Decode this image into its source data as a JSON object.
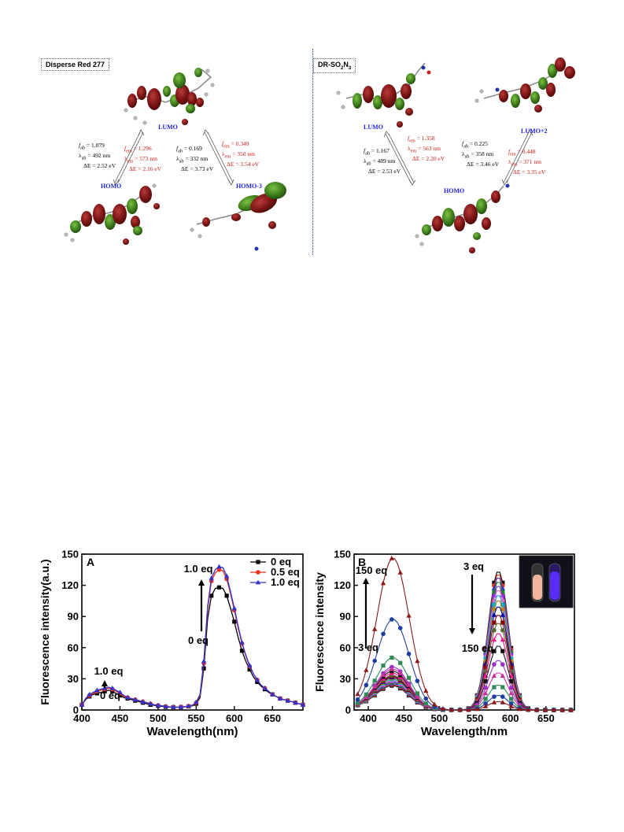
{
  "figure_top": {
    "left_panel": {
      "tag": "Disperse Red 277",
      "labels": {
        "lumo": "LUMO",
        "homo": "HOMO",
        "homo3": "HOMO-3"
      },
      "t1_black": {
        "f": "f",
        "f_sub": "ab",
        "f_val": " = 1.079",
        "lam": "λ",
        "lam_sub": "ab",
        "lam_val": " = 492 nm",
        "de": "ΔE = 2.52 eV"
      },
      "t1_red": {
        "f": "f",
        "f_sub": "em",
        "f_val": " = 1.296",
        "lam": "λ",
        "lam_sub": "em",
        "lam_val": " = 573 nm",
        "de": "ΔE = 2.16 eV"
      },
      "t2_black": {
        "f": "f",
        "f_sub": "ab",
        "f_val": " = 0.169",
        "lam": "λ",
        "lam_sub": "ab",
        "lam_val": " = 332 nm",
        "de": "ΔE = 3.73 eV"
      },
      "t2_red": {
        "f": "f",
        "f_sub": "em",
        "f_val": " = 0.349",
        "lam": "λ",
        "lam_sub": "em",
        "lam_val": " = 350 nm",
        "de": "ΔE = 3.54 eV"
      }
    },
    "right_panel": {
      "tag_main": "DR-SO",
      "tag_sub1": "2",
      "tag_mid": "N",
      "tag_sub2": "3",
      "labels": {
        "lumo": "LUMO",
        "homo": "HOMO",
        "lumo2": "LUMO+2"
      },
      "t1_black": {
        "f": "f",
        "f_sub": "ab",
        "f_val": " = 1.167",
        "lam": "λ",
        "lam_sub": "ab",
        "lam_val": " = 489 nm",
        "de": "ΔE = 2.53 eV"
      },
      "t1_red": {
        "f": "f",
        "f_sub": "em",
        "f_val": " = 1.358",
        "lam": "λ",
        "lam_sub": "em",
        "lam_val": " = 563 nm",
        "de": "ΔE = 2.20 eV"
      },
      "t2_black": {
        "f": "f",
        "f_sub": "ab",
        "f_val": " = 0.225",
        "lam": "λ",
        "lam_sub": "ab",
        "lam_val": " = 358 nm",
        "de": "ΔE = 3.46 eV"
      },
      "t2_red": {
        "f": "f",
        "f_sub": "em",
        "f_val": " = 0.448",
        "lam": "λ",
        "lam_sub": "em",
        "lam_val": " = 371 nm",
        "de": "ΔE = 3.35 eV"
      }
    },
    "colors": {
      "lobe_red": "#7a1414",
      "lobe_green": "#3e7d1c",
      "label_blue": "#2222dd",
      "text_red": "#cc1a1a"
    }
  },
  "chart_data": [
    {
      "type": "line",
      "panel_label": "A",
      "xlabel": "Wavelength(nm)",
      "ylabel": "Fluorescence intensity(a.u.)",
      "xlim": [
        400,
        690
      ],
      "ylim": [
        0,
        150
      ],
      "xticks": [
        400,
        450,
        500,
        550,
        600,
        650
      ],
      "yticks": [
        0,
        30,
        60,
        90,
        120,
        150
      ],
      "legend_position": "top-right",
      "annotations": {
        "arrow_top": "1.0 eq",
        "arrow_bottom": "0 eq",
        "small_top": "1.0 eq",
        "small_bottom": "0 eq"
      },
      "x": [
        400,
        405,
        410,
        415,
        420,
        425,
        430,
        435,
        440,
        445,
        450,
        455,
        460,
        465,
        470,
        475,
        480,
        485,
        490,
        495,
        500,
        505,
        510,
        515,
        520,
        525,
        530,
        535,
        540,
        545,
        550,
        555,
        560,
        565,
        570,
        575,
        580,
        585,
        590,
        595,
        600,
        605,
        610,
        615,
        620,
        625,
        630,
        635,
        640,
        645,
        650,
        655,
        660,
        665,
        670,
        675,
        680,
        685,
        690
      ],
      "series": [
        {
          "name": "0 eq",
          "color": "#000000",
          "marker": "square",
          "values": [
            5,
            10,
            13,
            15,
            16,
            17,
            18,
            19,
            18,
            16,
            14,
            12,
            11,
            10,
            9,
            8,
            7,
            6,
            5,
            4.5,
            4,
            3.5,
            3,
            2.8,
            2.7,
            2.6,
            2.8,
            3,
            3.5,
            4,
            6,
            12,
            40,
            88,
            110,
            117,
            118,
            117,
            110,
            98,
            85,
            70,
            57,
            47,
            39,
            32,
            27,
            23,
            20,
            17,
            15,
            13,
            11,
            10,
            9,
            8,
            7,
            6,
            5
          ]
        },
        {
          "name": "0.5 eq",
          "color": "#e8321e",
          "marker": "circle",
          "values": [
            5,
            11,
            14,
            16,
            18,
            19,
            20,
            21,
            20,
            18,
            16,
            13,
            12,
            11,
            10,
            9,
            8,
            7,
            6,
            5,
            4.5,
            4,
            3.5,
            3,
            2.9,
            2.8,
            3,
            3.2,
            3.7,
            4.5,
            7,
            14,
            45,
            97,
            124,
            132,
            135,
            134,
            126,
            112,
            96,
            79,
            64,
            52,
            42,
            35,
            29,
            24,
            21,
            18,
            15,
            13,
            11,
            10,
            9,
            8,
            7,
            6,
            5
          ]
        },
        {
          "name": "1.0 eq",
          "color": "#3333cc",
          "marker": "triangle",
          "values": [
            5,
            11,
            15,
            17,
            19,
            20,
            21,
            22,
            21,
            19,
            17,
            14,
            12,
            11,
            10,
            9,
            8,
            7,
            6,
            5,
            4.5,
            4,
            3.5,
            3,
            2.9,
            2.8,
            3,
            3.3,
            3.8,
            4.6,
            7.5,
            15,
            47,
            100,
            127,
            135,
            138,
            137,
            129,
            114,
            98,
            81,
            65,
            53,
            43,
            35,
            29,
            24,
            21,
            18,
            15,
            13,
            11,
            10,
            9,
            8,
            7,
            6,
            5
          ]
        }
      ]
    },
    {
      "type": "line",
      "panel_label": "B",
      "xlabel": "Wavelength/nm",
      "ylabel": "Fluorescence intensity",
      "xlim": [
        380,
        690
      ],
      "ylim": [
        0,
        150
      ],
      "xticks": [
        400,
        450,
        500,
        550,
        600,
        650
      ],
      "yticks": [
        0,
        30,
        60,
        90,
        120,
        150
      ],
      "annotations": {
        "left_top": "150 eq",
        "left_bottom": "3 eq",
        "right_top": "3 eq",
        "right_bottom": "150 eq"
      },
      "series": [
        {
          "name": "s1",
          "color": "#000000",
          "peak1": 22,
          "peak2": 134
        },
        {
          "name": "s2",
          "color": "#e8321e",
          "peak1": 23,
          "peak2": 131
        },
        {
          "name": "s3",
          "color": "#3333cc",
          "peak1": 24,
          "peak2": 128
        },
        {
          "name": "s4",
          "color": "#1a8a1a",
          "peak1": 25,
          "peak2": 124
        },
        {
          "name": "s5",
          "color": "#8a2be2",
          "peak1": 26,
          "peak2": 120
        },
        {
          "name": "s6",
          "color": "#ff66cc",
          "peak1": 27,
          "peak2": 116
        },
        {
          "name": "s7",
          "color": "#00aacc",
          "peak1": 28,
          "peak2": 111
        },
        {
          "name": "s8",
          "color": "#b8860b",
          "peak1": 29,
          "peak2": 106
        },
        {
          "name": "s9",
          "color": "#0000aa",
          "peak1": 30,
          "peak2": 100
        },
        {
          "name": "s10",
          "color": "#8b0000",
          "peak1": 31,
          "peak2": 92
        },
        {
          "name": "s11",
          "color": "#556b2f",
          "peak1": 32,
          "peak2": 84
        },
        {
          "name": "s12",
          "color": "#ff1493",
          "peak1": 34,
          "peak2": 74
        },
        {
          "name": "s13",
          "color": "#111111",
          "peak1": 36,
          "peak2": 62
        },
        {
          "name": "s14",
          "color": "#9932cc",
          "peak1": 40,
          "peak2": 48
        },
        {
          "name": "s15",
          "color": "#cc3399",
          "peak1": 38,
          "peak2": 36
        },
        {
          "name": "s16",
          "color": "#2e8b57",
          "peak1": 49,
          "peak2": 24
        },
        {
          "name": "s17",
          "color": "#1f3fa0",
          "peak1": 86,
          "peak2": 14
        },
        {
          "name": "s18",
          "color": "#8b1a1a",
          "peak1": 145,
          "peak2": 8
        }
      ],
      "inset": {
        "left_vial_color": "#f2b49a",
        "right_vial_color": "#5a2cff",
        "background": "#101018"
      }
    }
  ]
}
